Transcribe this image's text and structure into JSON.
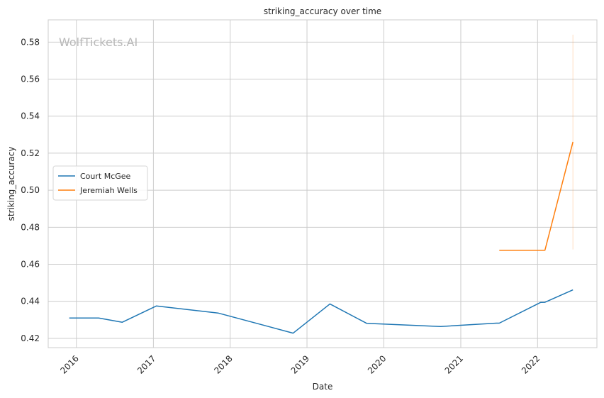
{
  "chart_data": {
    "type": "line",
    "title": "striking_accuracy over time",
    "xlabel": "Date",
    "ylabel": "striking_accuracy",
    "watermark": "WolfTickets.AI",
    "x_ticks": [
      "2016",
      "2017",
      "2018",
      "2019",
      "2020",
      "2021",
      "2022"
    ],
    "y_ticks": [
      "0.42",
      "0.44",
      "0.46",
      "0.48",
      "0.50",
      "0.52",
      "0.54",
      "0.56",
      "0.58"
    ],
    "ylim": [
      0.415,
      0.592
    ],
    "xlim": [
      "2015-08-20",
      "2022-10-10"
    ],
    "grid": true,
    "legend_position": "center-left",
    "series": [
      {
        "name": "Court McGee",
        "color": "#1f77b4",
        "x": [
          "2015-11-28",
          "2016-04-16",
          "2016-08-06",
          "2017-01-15",
          "2017-11-04",
          "2018-10-27",
          "2019-04-20",
          "2019-10-12",
          "2020-09-27",
          "2021-06-19",
          "2021-07-03",
          "2022-01-15",
          "2022-02-05",
          "2022-06-18"
        ],
        "values": [
          0.431,
          0.431,
          0.4287,
          0.4375,
          0.4337,
          0.4228,
          0.4386,
          0.4281,
          0.4264,
          0.4282,
          0.4282,
          0.4394,
          0.4395,
          0.4462
        ]
      },
      {
        "name": "Jeremiah Wells",
        "color": "#ff7f0e",
        "x": [
          "2021-07-03",
          "2022-02-05",
          "2022-06-18"
        ],
        "values": [
          0.4676,
          0.4676,
          0.5261
        ],
        "error_band": {
          "x": "2022-06-18",
          "low": 0.468,
          "high": 0.584
        }
      }
    ]
  }
}
